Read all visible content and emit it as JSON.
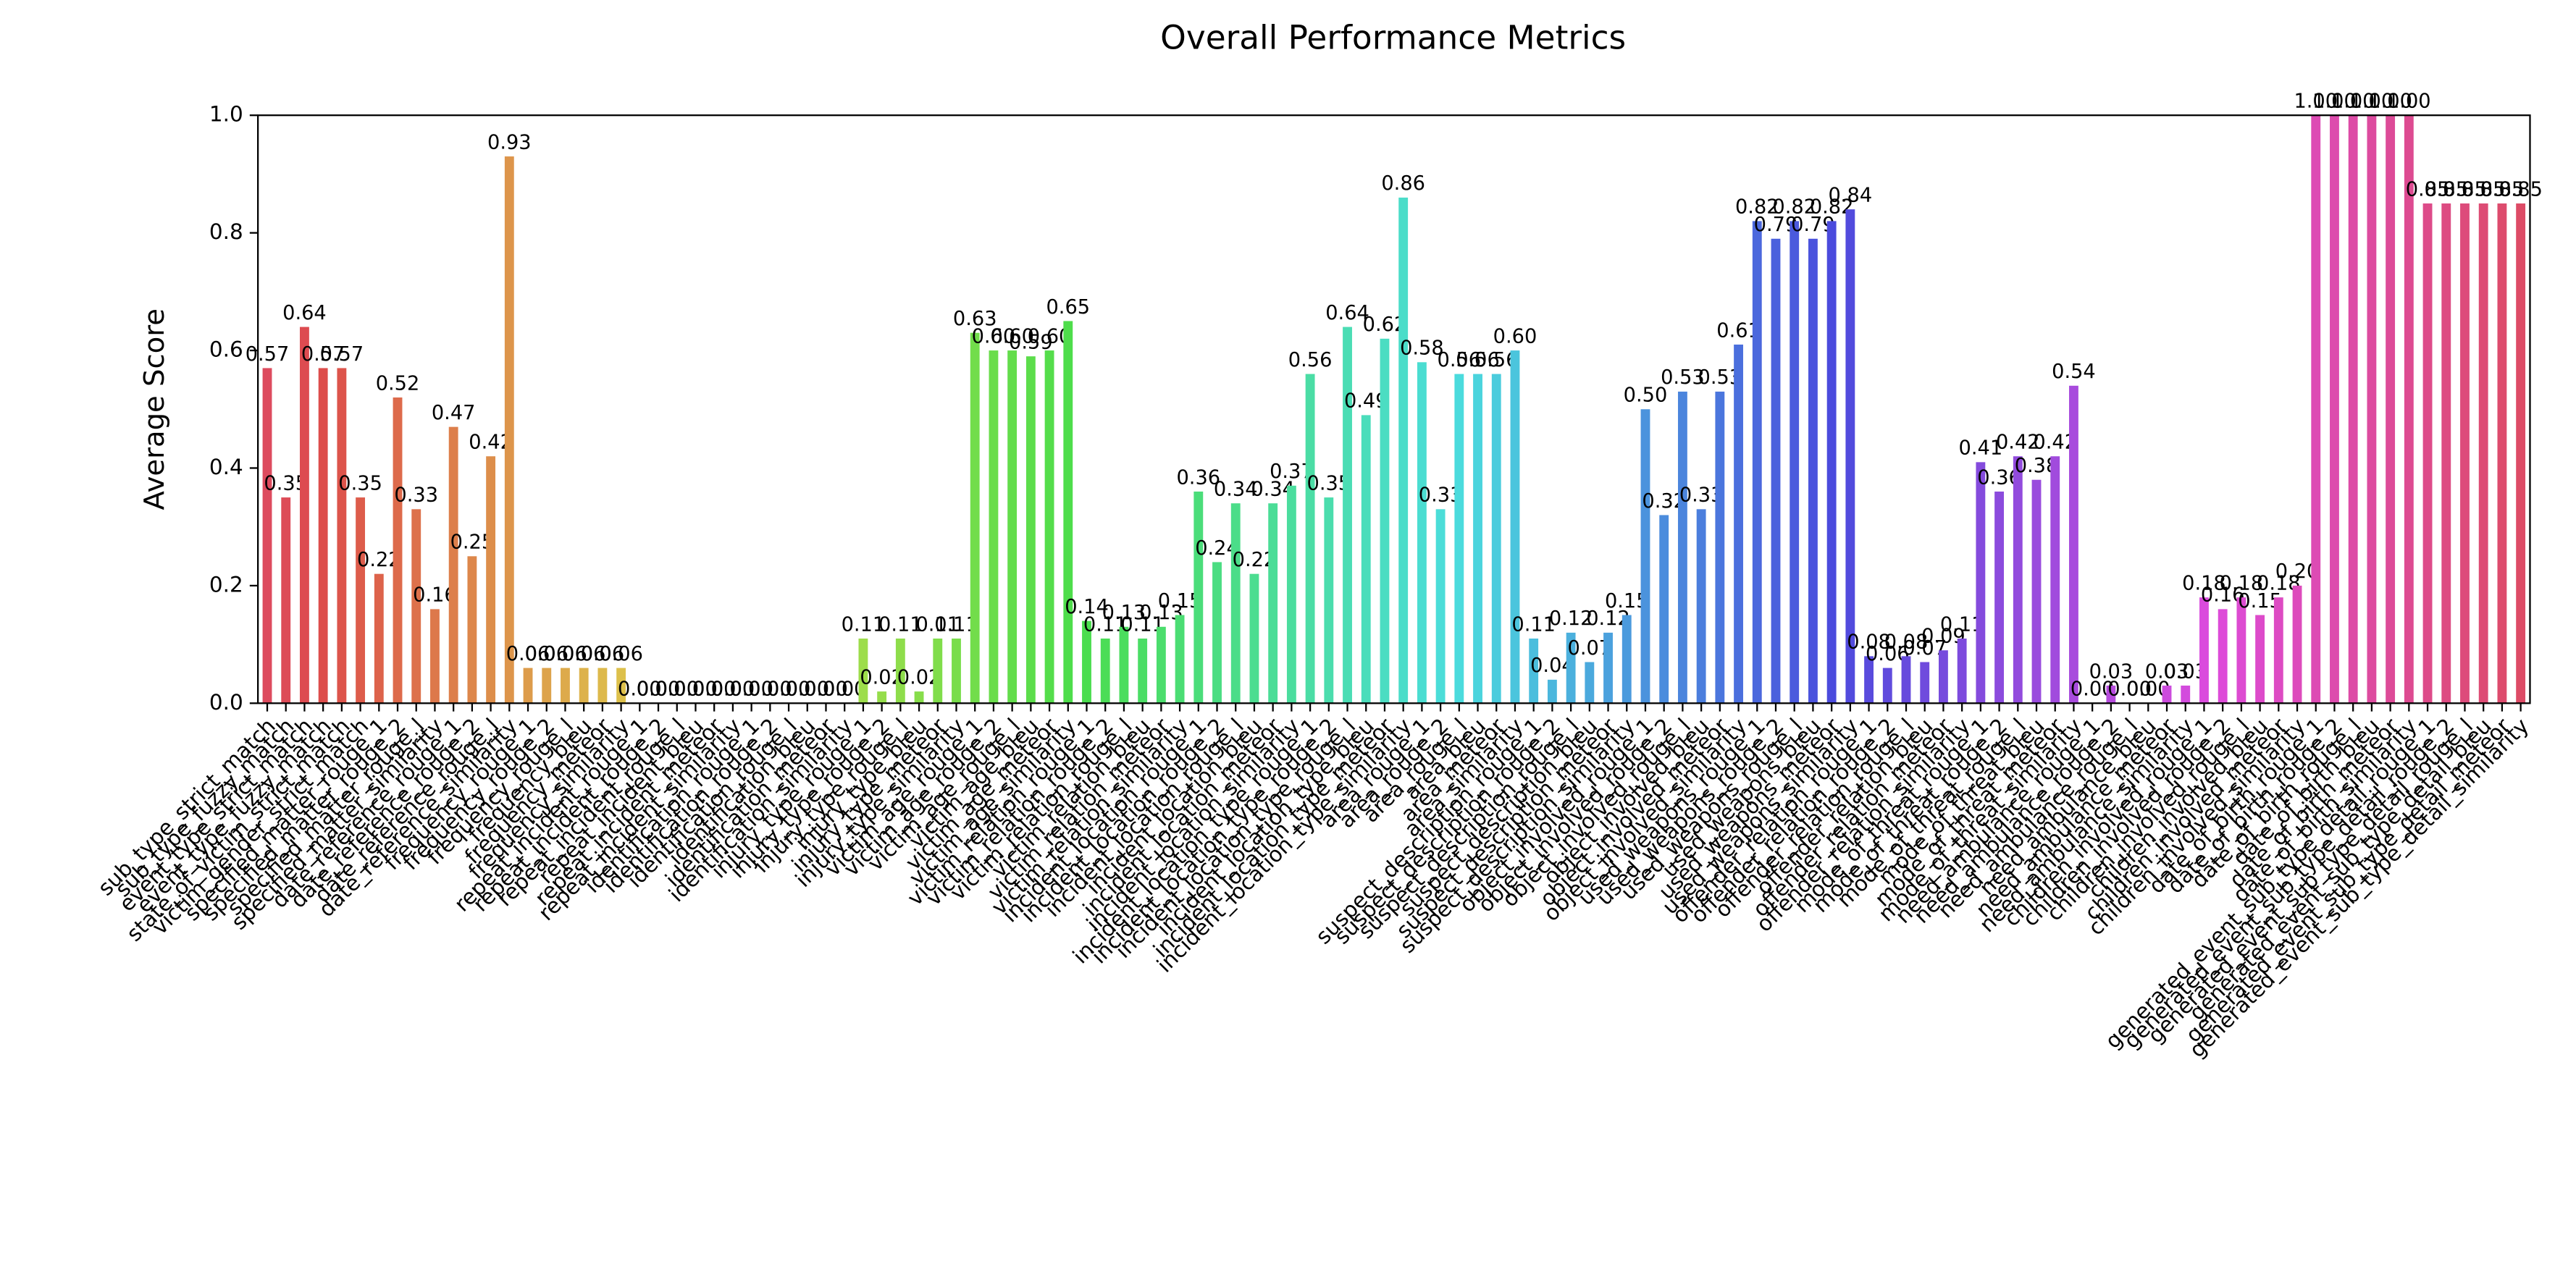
{
  "chart_data": {
    "type": "bar",
    "title": "Overall Performance Metrics",
    "ylabel": "Average Score",
    "palette": "husl",
    "grid": false,
    "categories": [
      "sub_type_strict_match",
      "sub_type_fuzzy_match",
      "event_type_strict_match",
      "event_type_fuzzy_match",
      "state_of_victim_strict_match",
      "victim_gender_strict_match",
      "specified_matter_rouge_1",
      "specified_matter_rouge_2",
      "specified_matter_rouge_l",
      "specified_matter_similarity",
      "date_reference_rouge_1",
      "date_reference_rouge_2",
      "date_reference_rouge_l",
      "date_reference_similarity",
      "frequency_rouge_1",
      "frequency_rouge_2",
      "frequency_rouge_l",
      "frequency_bleu",
      "frequency_meteor",
      "frequency_similarity",
      "repeat_incident_rouge_1",
      "repeat_incident_rouge_2",
      "repeat_incident_rouge_l",
      "repeat_incident_bleu",
      "repeat_incident_meteor",
      "repeat_incident_similarity",
      "identification_rouge_1",
      "identification_rouge_2",
      "identification_rouge_l",
      "identification_bleu",
      "identification_meteor",
      "identification_similarity",
      "injury_type_rouge_1",
      "injury_type_rouge_2",
      "injury_type_rouge_l",
      "injury_type_bleu",
      "injury_type_meteor",
      "injury_type_similarity",
      "victim_age_rouge_1",
      "victim_age_rouge_2",
      "victim_age_rouge_l",
      "victim_age_bleu",
      "victim_age_meteor",
      "victim_age_similarity",
      "victim_relation_rouge_1",
      "victim_relation_rouge_2",
      "victim_relation_rouge_l",
      "victim_relation_bleu",
      "victim_relation_meteor",
      "victim_relation_similarity",
      "incident_location_rouge_1",
      "incident_location_rouge_2",
      "incident_location_rouge_l",
      "incident_location_bleu",
      "incident_location_meteor",
      "incident_location_similarity",
      "incident_location_type_rouge_1",
      "incident_location_type_rouge_2",
      "incident_location_type_rouge_l",
      "incident_location_type_bleu",
      "incident_location_type_meteor",
      "incident_location_type_similarity",
      "area_rouge_1",
      "area_rouge_2",
      "area_rouge_l",
      "area_bleu",
      "area_meteor",
      "area_similarity",
      "suspect_description_rouge_1",
      "suspect_description_rouge_2",
      "suspect_description_rouge_l",
      "suspect_description_bleu",
      "suspect_description_meteor",
      "suspect_description_similarity",
      "object_involved_rouge_1",
      "object_involved_rouge_2",
      "object_involved_rouge_l",
      "object_involved_bleu",
      "object_involved_meteor",
      "object_involved_similarity",
      "used_weapons_rouge_1",
      "used_weapons_rouge_2",
      "used_weapons_rouge_l",
      "used_weapons_bleu",
      "used_weapons_meteor",
      "used_weapons_similarity",
      "offender_relation_rouge_1",
      "offender_relation_rouge_2",
      "offender_relation_rouge_l",
      "offender_relation_bleu",
      "offender_relation_meteor",
      "offender_relation_similarity",
      "mode_of_threat_rouge_1",
      "mode_of_threat_rouge_2",
      "mode_of_threat_rouge_l",
      "mode_of_threat_bleu",
      "mode_of_threat_meteor",
      "mode_of_threat_similarity",
      "need_ambulance_rouge_1",
      "need_ambulance_rouge_2",
      "need_ambulance_rouge_l",
      "need_ambulance_bleu",
      "need_ambulance_meteor",
      "need_ambulance_similarity",
      "children_involved_rouge_1",
      "children_involved_rouge_2",
      "children_involved_rouge_l",
      "children_involved_bleu",
      "children_involved_meteor",
      "children_involved_similarity",
      "date_of_birth_rouge_1",
      "date_of_birth_rouge_2",
      "date_of_birth_rouge_l",
      "date_of_birth_bleu",
      "date_of_birth_meteor",
      "date_of_birth_similarity",
      "generated_event_sub_type_detail_rouge_1",
      "generated_event_sub_type_detail_rouge_2",
      "generated_event_sub_type_detail_rouge_l",
      "generated_event_sub_type_detail_bleu",
      "generated_event_sub_type_detail_meteor",
      "generated_event_sub_type_detail_similarity"
    ],
    "values": [
      0.57,
      0.35,
      0.64,
      0.57,
      0.57,
      0.35,
      0.22,
      0.52,
      0.33,
      0.16,
      0.47,
      0.25,
      0.42,
      0.93,
      0.06,
      0.06,
      0.06,
      0.06,
      0.06,
      0.06,
      0,
      0,
      0,
      0,
      0,
      0,
      0,
      0,
      0,
      0,
      0,
      0,
      0.11,
      0.02,
      0.11,
      0.02,
      0.11,
      0.11,
      0.63,
      0.6,
      0.6,
      0.59,
      0.6,
      0.65,
      0.14,
      0.11,
      0.13,
      0.11,
      0.13,
      0.15,
      0.36,
      0.24,
      0.34,
      0.22,
      0.34,
      0.37,
      0.56,
      0.35,
      0.64,
      0.49,
      0.62,
      0.86,
      0.58,
      0.33,
      0.56,
      0.56,
      0.56,
      0.6,
      0.11,
      0.04,
      0.12,
      0.07,
      0.12,
      0.15,
      0.5,
      0.32,
      0.53,
      0.33,
      0.53,
      0.61,
      0.82,
      0.79,
      0.82,
      0.79,
      0.82,
      0.84,
      0.08,
      0.06,
      0.08,
      0.07,
      0.09,
      0.11,
      0.41,
      0.36,
      0.42,
      0.38,
      0.42,
      0.54,
      0,
      0.03,
      0,
      0,
      0.03,
      0.03,
      0.18,
      0.16,
      0.18,
      0.15,
      0.18,
      0.2,
      1,
      1,
      1,
      1,
      1,
      1,
      0.85,
      0.85,
      0.85,
      0.85,
      0.85,
      0.85
    ],
    "value_labels": [
      "0.57",
      "0.35",
      "0.64",
      "0.57",
      "0.57",
      "0.35",
      "0.22",
      "0.52",
      "0.33",
      "0.16",
      "0.47",
      "0.25",
      "0.42",
      "0.93",
      "0.06",
      "0.06",
      "0.06",
      "0.06",
      "0.06",
      "0.06",
      "0.00",
      "0.00",
      "0.00",
      "0.00",
      "0.00",
      "0.00",
      "0.00",
      "0.00",
      "0.00",
      "0.00",
      "0.00",
      "0.00",
      "0.11",
      "0.02",
      "0.11",
      "0.02",
      "0.11",
      "0.11",
      "0.63",
      "0.60",
      "0.60",
      "0.59",
      "0.60",
      "0.65",
      "0.14",
      "0.11",
      "0.13",
      "0.11",
      "0.13",
      "0.15",
      "0.36",
      "0.24",
      "0.34",
      "0.22",
      "0.34",
      "0.37",
      "0.56",
      "0.35",
      "0.64",
      "0.49",
      "0.62",
      "0.86",
      "0.58",
      "0.33",
      "0.56",
      "0.56",
      "0.56",
      "0.60",
      "0.11",
      "0.04",
      "0.12",
      "0.07",
      "0.12",
      "0.15",
      "0.50",
      "0.32",
      "0.53",
      "0.33",
      "0.53",
      "0.61",
      "0.82",
      "0.79",
      "0.82",
      "0.79",
      "0.82",
      "0.84",
      "0.08",
      "0.06",
      "0.08",
      "0.07",
      "0.09",
      "0.11",
      "0.41",
      "0.36",
      "0.42",
      "0.38",
      "0.42",
      "0.54",
      "0.00",
      "0.03",
      "0.00",
      "0.00",
      "0.03",
      "0.03",
      "0.18",
      "0.16",
      "0.18",
      "0.15",
      "0.18",
      "0.20",
      "1.00",
      "1.00",
      "1.00",
      "1.00",
      "1.00",
      "1.00",
      "0.85",
      "0.85",
      "0.85",
      "0.85",
      "0.85",
      "0.85"
    ],
    "ylim": [
      0,
      1
    ],
    "yticks": [
      {
        "value": 0,
        "label": "0.0"
      },
      {
        "value": 0.2,
        "label": "0.2"
      },
      {
        "value": 0.4,
        "label": "0.4"
      },
      {
        "value": 0.6,
        "label": "0.6"
      },
      {
        "value": 0.8,
        "label": "0.8"
      },
      {
        "value": 1,
        "label": "1.0"
      }
    ]
  }
}
